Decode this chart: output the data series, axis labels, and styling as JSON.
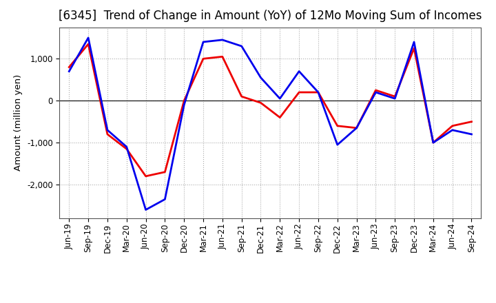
{
  "title": "[6345]  Trend of Change in Amount (YoY) of 12Mo Moving Sum of Incomes",
  "ylabel": "Amount (million yen)",
  "x_labels": [
    "Jun-19",
    "Sep-19",
    "Dec-19",
    "Mar-20",
    "Jun-20",
    "Sep-20",
    "Dec-20",
    "Mar-21",
    "Jun-21",
    "Sep-21",
    "Dec-21",
    "Mar-22",
    "Jun-22",
    "Sep-22",
    "Dec-22",
    "Mar-23",
    "Jun-23",
    "Sep-23",
    "Dec-23",
    "Mar-24",
    "Jun-24",
    "Sep-24"
  ],
  "ordinary_income": [
    700,
    1500,
    -700,
    -1100,
    -2600,
    -2350,
    -100,
    1400,
    1450,
    1300,
    550,
    50,
    700,
    200,
    -1050,
    -650,
    200,
    50,
    1400,
    -1000,
    -700,
    -800
  ],
  "net_income": [
    800,
    1350,
    -800,
    -1150,
    -1800,
    -1700,
    0,
    1000,
    1050,
    100,
    -50,
    -400,
    200,
    200,
    -600,
    -650,
    250,
    100,
    1250,
    -1000,
    -600,
    -500
  ],
  "ordinary_color": "#0000EE",
  "net_color": "#EE0000",
  "ylim": [
    -2800,
    1750
  ],
  "yticks": [
    -2000,
    -1000,
    0,
    1000
  ],
  "background_color": "#FFFFFF",
  "grid_color": "#AAAAAA",
  "title_fontsize": 12,
  "label_fontsize": 9.5,
  "tick_fontsize": 8.5,
  "legend_fontsize": 9.5,
  "linewidth": 2.0
}
